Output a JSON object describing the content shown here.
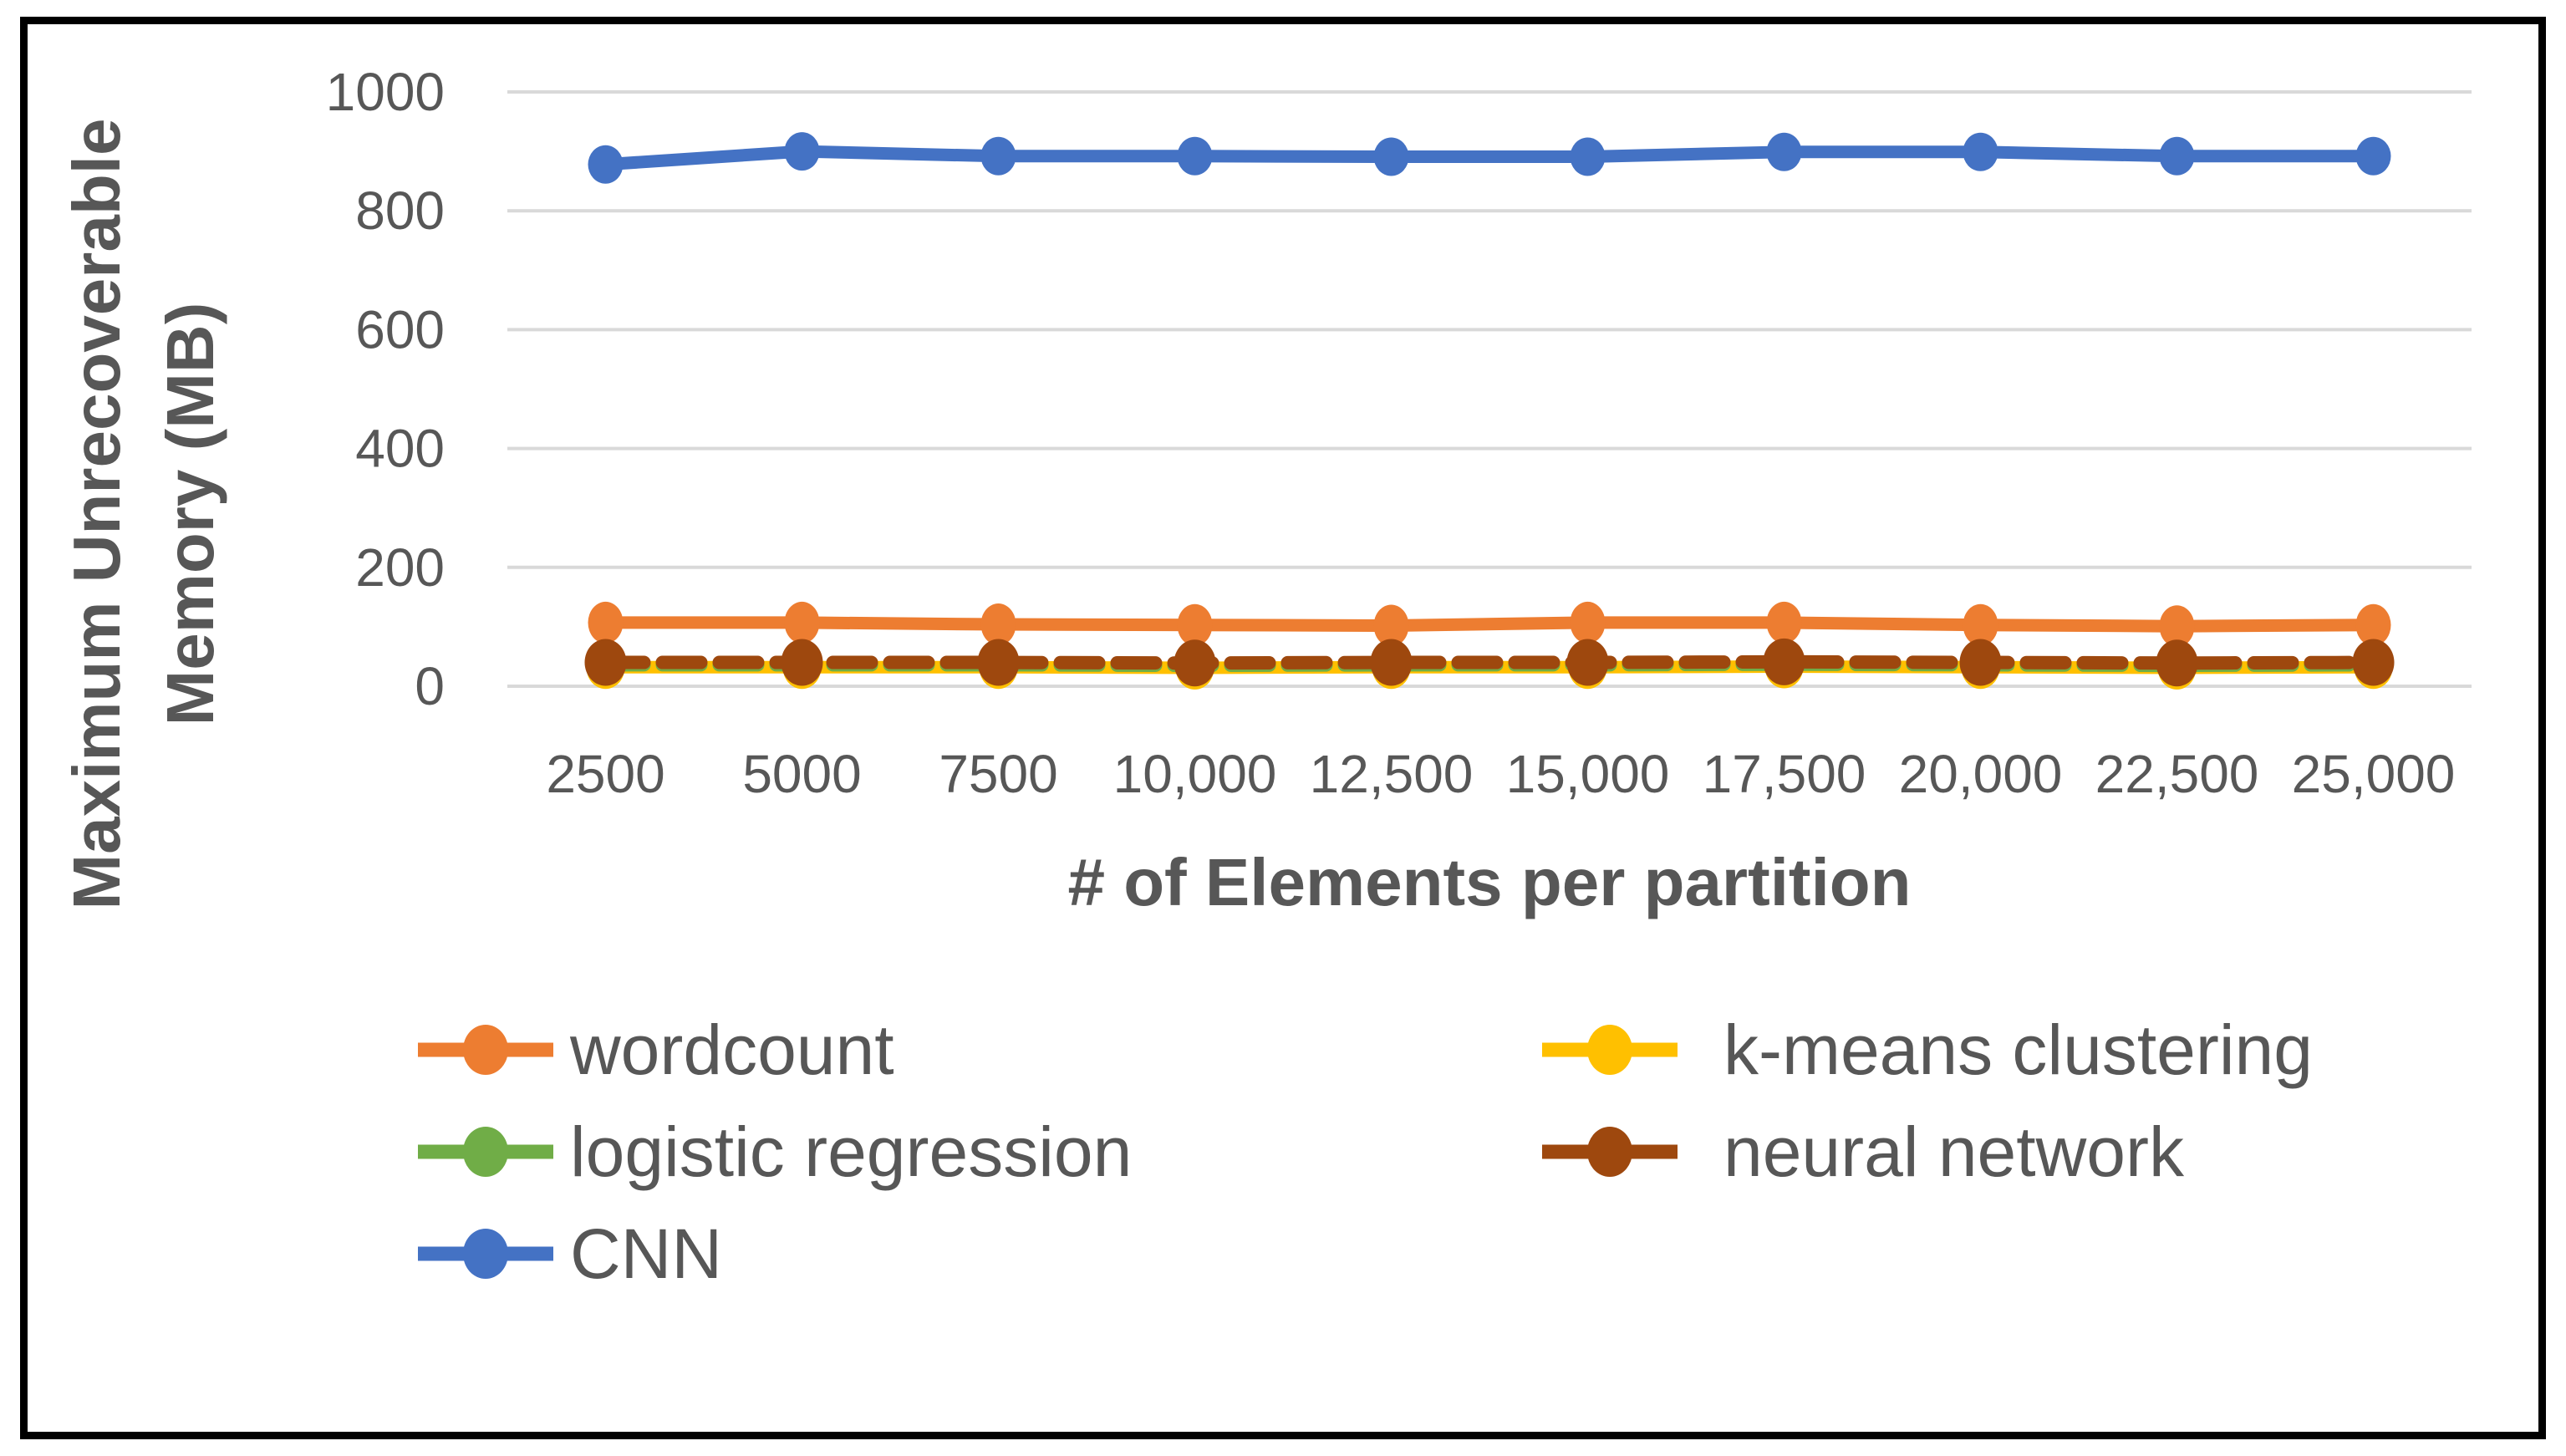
{
  "figure": {
    "background": "#FFFFFF",
    "border_color": "#000000"
  },
  "style": {
    "text_color": "#575757",
    "gridline_color": "#D9D9D9"
  },
  "chart_data": {
    "type": "line",
    "title": "",
    "xlabel": "# of Elements per partition",
    "ylabel": "Maximum Unrecoverable Memory (MB)",
    "ylabel_lines": [
      "Maximum Unrecoverable",
      "Memory (MB)"
    ],
    "categories": [
      "2500",
      "5000",
      "7500",
      "10,000",
      "12,500",
      "15,000",
      "17,500",
      "20,000",
      "22,500",
      "25,000"
    ],
    "ylim": [
      0,
      1000
    ],
    "yticks": [
      0,
      200,
      400,
      600,
      800,
      1000
    ],
    "grid": "horizontal-only",
    "legend_position": "bottom-two-columns",
    "series": [
      {
        "name": "wordcount",
        "color": "#ED7D31",
        "line_style": "solid",
        "marker": {
          "rx": 21,
          "ry": 25
        },
        "values": [
          107,
          107,
          104,
          103,
          102,
          107,
          107,
          103,
          101,
          103
        ]
      },
      {
        "name": "k-means clustering",
        "color": "#FFC000",
        "line_style": "solid",
        "marker": {
          "rx": 23,
          "ry": 26
        },
        "values": [
          32,
          32,
          32,
          31,
          32,
          32,
          33,
          32,
          31,
          32
        ]
      },
      {
        "name": "logistic regression",
        "color": "#70AD47",
        "line_style": "dashed",
        "marker": {
          "rx": 18,
          "ry": 20
        },
        "values": [
          36,
          36,
          36,
          35,
          36,
          36,
          37,
          36,
          35,
          36
        ]
      },
      {
        "name": "neural network",
        "color": "#9E480E",
        "line_style": "dashed",
        "marker": {
          "rx": 25,
          "ry": 28
        },
        "values": [
          40,
          40,
          40,
          39,
          40,
          40,
          41,
          40,
          39,
          40
        ]
      },
      {
        "name": "CNN",
        "color": "#4472C4",
        "line_style": "solid",
        "marker": {
          "rx": 21,
          "ry": 23
        },
        "values": [
          878,
          900,
          892,
          892,
          891,
          891,
          899,
          899,
          892,
          892
        ]
      }
    ],
    "draw_order": [
      "CNN",
      "wordcount",
      "k-means clustering",
      "logistic regression",
      "neural network"
    ],
    "legend_columns": [
      [
        "wordcount",
        "logistic regression",
        "CNN"
      ],
      [
        "k-means clustering",
        "neural network"
      ]
    ]
  }
}
